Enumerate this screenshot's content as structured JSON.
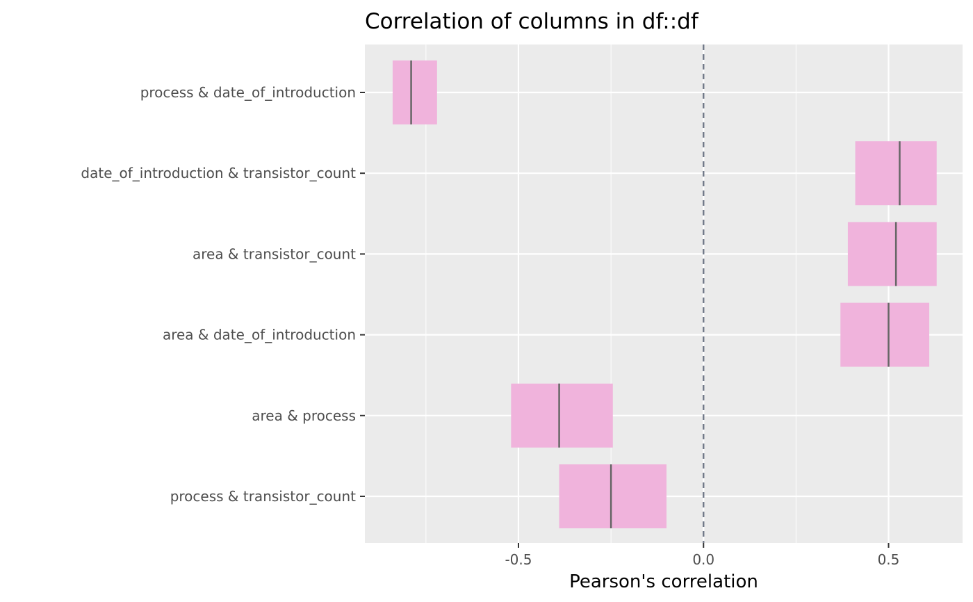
{
  "chart_data": {
    "type": "crossbar",
    "title": "Correlation of columns in df::df",
    "xlabel": "Pearson's correlation",
    "ylabel": "",
    "xlim": [
      -0.915,
      0.7
    ],
    "x_ticks": [
      -0.5,
      0.0,
      0.5
    ],
    "x_tick_labels": [
      "-0.5",
      "0.0",
      "0.5"
    ],
    "reference_line": 0.0,
    "grid": true,
    "colors": {
      "panel": "#ebebeb",
      "grid": "#ffffff",
      "box_fill": "#f0b3dc",
      "estimate_line": "#666666",
      "reference_line": "#707888"
    },
    "rows": [
      {
        "label": "process & date_of_introduction",
        "low": -0.84,
        "estimate": -0.79,
        "high": -0.72
      },
      {
        "label": "date_of_introduction & transistor_count",
        "low": 0.41,
        "estimate": 0.53,
        "high": 0.63
      },
      {
        "label": "area & transistor_count",
        "low": 0.39,
        "estimate": 0.52,
        "high": 0.63
      },
      {
        "label": "area & date_of_introduction",
        "low": 0.37,
        "estimate": 0.5,
        "high": 0.61
      },
      {
        "label": "area & process",
        "low": -0.52,
        "estimate": -0.39,
        "high": -0.245
      },
      {
        "label": "process & transistor_count",
        "low": -0.39,
        "estimate": -0.25,
        "high": -0.1
      }
    ]
  }
}
